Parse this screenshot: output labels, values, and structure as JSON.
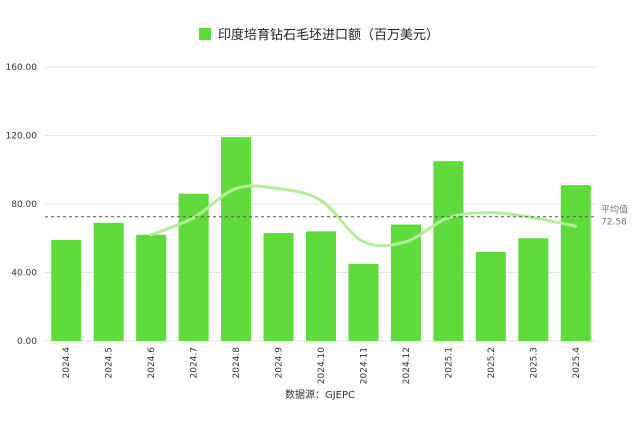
{
  "chart_data": {
    "type": "bar",
    "title": "",
    "legend": "印度培育钻石毛坯进口额（百万美元）",
    "source": "数据源：GJEPC",
    "categories": [
      "2024.4",
      "2024.5",
      "2024.6",
      "2024.7",
      "2024.8",
      "2024.9",
      "2024.10",
      "2024.11",
      "2024.12",
      "2025.1",
      "2025.2",
      "2025.3",
      "2025.4"
    ],
    "series": [
      {
        "name": "印度培育钻石毛坯进口额（百万美元）",
        "values": [
          59,
          69,
          62,
          86,
          119,
          63,
          64,
          45,
          68,
          105,
          52,
          60,
          91
        ]
      }
    ],
    "trend_line": [
      null,
      null,
      62,
      72,
      89,
      89,
      82,
      58,
      58,
      72,
      75,
      72,
      67
    ],
    "average": {
      "label": "平均值",
      "value": 72.58
    },
    "yticks": [
      "0.00",
      "40.00",
      "80.00",
      "120.00",
      "160.00"
    ],
    "ylim": [
      0,
      160
    ],
    "grid": true,
    "legend_position": "top",
    "colors": {
      "bar": "#5fdb3b",
      "trend": "#b8ec9c",
      "grid": "#e6e6e6",
      "average": "#555555"
    }
  }
}
